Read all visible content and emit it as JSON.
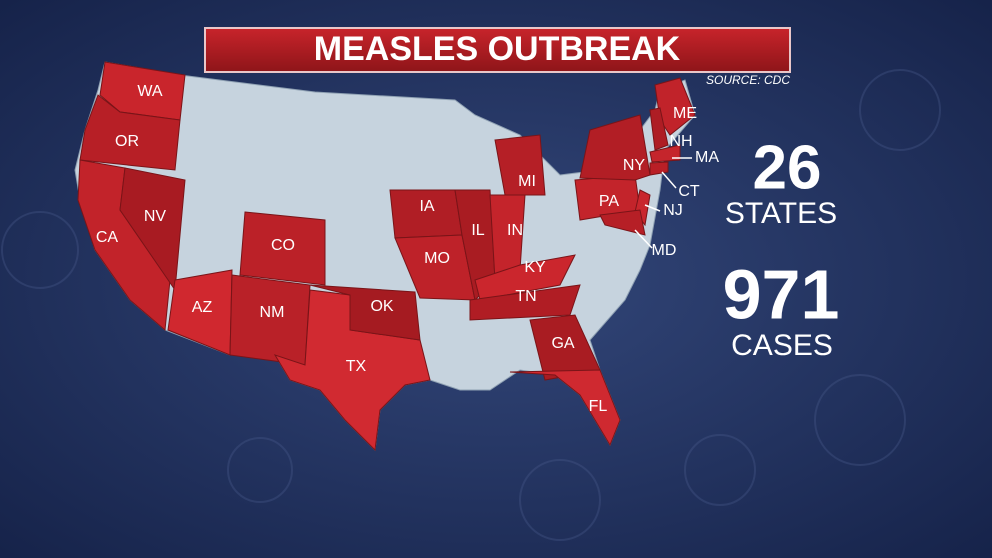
{
  "header": {
    "title": "MEASLES OUTBREAK",
    "source": "SOURCE: CDC"
  },
  "states": [
    "WA",
    "OR",
    "CA",
    "NV",
    "AZ",
    "NM",
    "CO",
    "TX",
    "OK",
    "IA",
    "MO",
    "IL",
    "IN",
    "MI",
    "KY",
    "TN",
    "GA",
    "FL",
    "PA",
    "NY",
    "NJ",
    "MD",
    "ME",
    "NH",
    "MA",
    "CT"
  ],
  "stats": [
    {
      "value": 26,
      "label": "STATES"
    },
    {
      "value": 971,
      "label": "CASES"
    }
  ]
}
